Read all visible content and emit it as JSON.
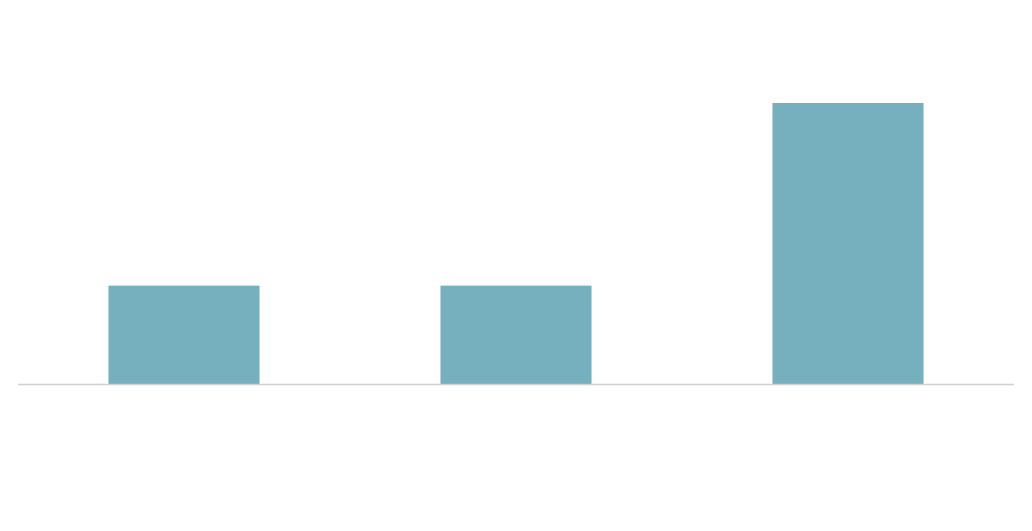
{
  "chart_data": {
    "type": "bar",
    "categories": [
      null,
      null,
      null
    ],
    "values": [
      35,
      35,
      100
    ],
    "color": "#76afbd",
    "ylim": [
      0,
      100
    ]
  }
}
